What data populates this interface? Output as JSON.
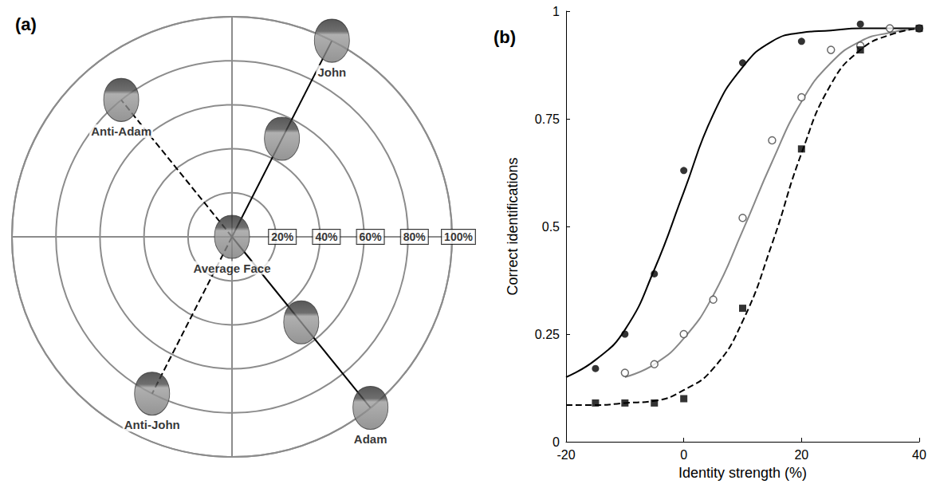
{
  "chart_data": [
    {
      "type": "polar",
      "title": "(a)",
      "ylim": [
        0,
        100
      ],
      "yticks": [
        {
          "value": 20,
          "label": "20%"
        },
        {
          "value": 40,
          "label": "40%"
        },
        {
          "value": 60,
          "label": "60%"
        },
        {
          "value": 80,
          "label": "80%"
        },
        {
          "value": 100,
          "label": "100%"
        }
      ],
      "xlim": [
        0,
        360
      ],
      "xticks": [
        0,
        90,
        180,
        270
      ],
      "tick_labels": "y",
      "grid": true,
      "lines": [
        {
          "angle": 63,
          "r": [
            0,
            100
          ],
          "line_style": "solid",
          "color": "#000000"
        },
        {
          "angle": 309,
          "r": [
            0,
            100
          ],
          "line_style": "solid",
          "color": "#000000"
        },
        {
          "angle": 129,
          "r": [
            0,
            80
          ],
          "line_style": "dashed",
          "color": "#000000"
        },
        {
          "angle": 243,
          "r": [
            0,
            80
          ],
          "line_style": "dashed",
          "color": "#000000"
        }
      ],
      "faces": [
        {
          "label": "John",
          "r": 100,
          "angle": 63
        },
        {
          "label": null,
          "r": 50,
          "angle": 63
        },
        {
          "label": "Adam",
          "r": 100,
          "angle": 309
        },
        {
          "label": null,
          "r": 50,
          "angle": 309
        },
        {
          "label": "Anti-Adam",
          "r": 80,
          "angle": 129
        },
        {
          "label": "Anti-John",
          "r": 80,
          "angle": 243
        },
        {
          "label": "Average Face",
          "r": 0,
          "angle": 0
        }
      ]
    },
    {
      "type": "scatter",
      "title": "(b)",
      "x_label": "Identity strength (%)",
      "y_label": "Correct identifications",
      "xlim": [
        -20,
        40
      ],
      "xticks": [
        -20,
        0,
        20,
        40
      ],
      "ylim": [
        0,
        1
      ],
      "yticks": [
        0,
        0.25,
        0.5,
        0.75,
        1
      ],
      "grid": false,
      "series": [
        {
          "type": "line",
          "line_style": "solid",
          "color": "#000000",
          "x": [
            -20,
            -15,
            -10,
            -5,
            0,
            5,
            10,
            15,
            20,
            25,
            30,
            40
          ],
          "values": [
            0.15,
            0.19,
            0.26,
            0.4,
            0.58,
            0.76,
            0.87,
            0.93,
            0.95,
            0.955,
            0.96,
            0.96
          ]
        },
        {
          "type": "line",
          "line_style": "solid",
          "color": "#888888",
          "x": [
            -10,
            -5,
            0,
            5,
            10,
            15,
            20,
            25,
            30,
            35,
            40
          ],
          "values": [
            0.15,
            0.18,
            0.24,
            0.34,
            0.49,
            0.65,
            0.79,
            0.88,
            0.93,
            0.95,
            0.96
          ]
        },
        {
          "type": "line",
          "line_style": "dashed",
          "color": "#000000",
          "x": [
            -20,
            -15,
            -10,
            -5,
            0,
            5,
            10,
            15,
            20,
            25,
            30,
            35,
            40
          ],
          "values": [
            0.085,
            0.085,
            0.09,
            0.095,
            0.12,
            0.17,
            0.28,
            0.46,
            0.67,
            0.83,
            0.91,
            0.945,
            0.96
          ]
        },
        {
          "type": "scatter",
          "marker": "circle",
          "color": "#000000",
          "x": [
            -15,
            -10,
            -5,
            0,
            10,
            20,
            30,
            40
          ],
          "values": [
            0.17,
            0.25,
            0.39,
            0.63,
            0.88,
            0.93,
            0.97,
            0.96
          ]
        },
        {
          "type": "scatter",
          "marker": "open_circle",
          "color": "#444444",
          "x": [
            -10,
            -5,
            0,
            5,
            10,
            15,
            20,
            25,
            30,
            35,
            40
          ],
          "values": [
            0.16,
            0.18,
            0.25,
            0.33,
            0.52,
            0.7,
            0.8,
            0.91,
            0.92,
            0.96,
            0.96
          ]
        },
        {
          "type": "scatter",
          "marker": "square",
          "color": "#000000",
          "x": [
            -15,
            -10,
            -5,
            0,
            10,
            20,
            30,
            40
          ],
          "values": [
            0.09,
            0.09,
            0.09,
            0.1,
            0.31,
            0.68,
            0.91,
            0.96
          ]
        }
      ]
    }
  ]
}
